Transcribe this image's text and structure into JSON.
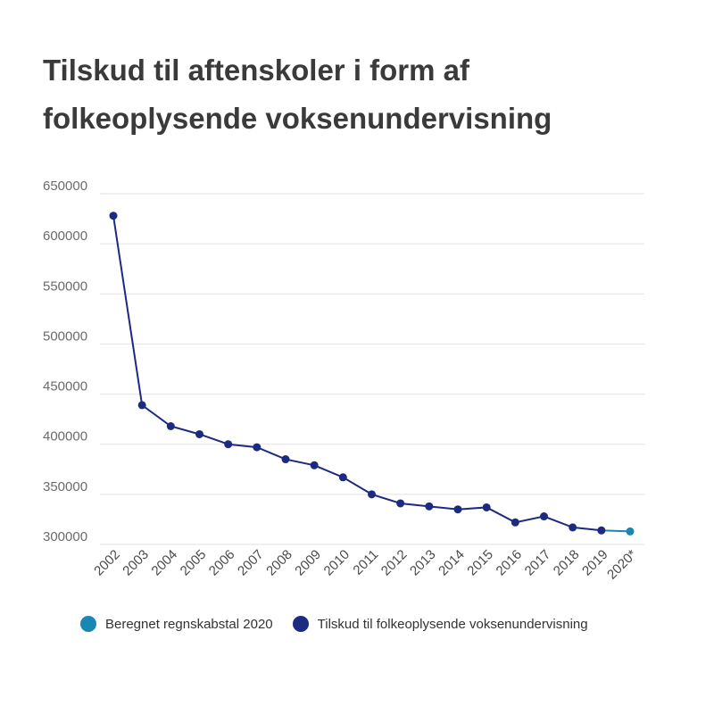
{
  "colors": {
    "main": "#1c2a80",
    "estimate": "#1a86b4",
    "grid": "#e2e2e2"
  },
  "chart_data": {
    "type": "line",
    "title": "Tilskud til aftenskoler i form af folkeoplysende voksenundervisning",
    "title_lines": [
      "Tilskud til aftenskoler i form af",
      "folkeoplysende voksenundervisning"
    ],
    "categories": [
      "2002",
      "2003",
      "2004",
      "2005",
      "2006",
      "2007",
      "2008",
      "2009",
      "2010",
      "2011",
      "2012",
      "2013",
      "2014",
      "2015",
      "2016",
      "2017",
      "2018",
      "2019",
      "2020*"
    ],
    "y_ticks": [
      "300000",
      "350000",
      "400000",
      "450000",
      "500000",
      "550000",
      "600000",
      "650000"
    ],
    "ylim": [
      300000,
      650000
    ],
    "grid": true,
    "legend_position": "bottom",
    "series": [
      {
        "name": "Tilskud til folkeoplysende voksenundervisning",
        "color": "#1c2a80",
        "values": [
          628000,
          439000,
          418000,
          410000,
          400000,
          397000,
          385000,
          379000,
          367000,
          350000,
          341000,
          338000,
          335000,
          337000,
          322000,
          328000,
          317000,
          314000,
          null
        ]
      },
      {
        "name": "Beregnet regnskabstal 2020",
        "color": "#1a86b4",
        "values": [
          null,
          null,
          null,
          null,
          null,
          null,
          null,
          null,
          null,
          null,
          null,
          null,
          null,
          null,
          null,
          null,
          null,
          314000,
          313000
        ]
      }
    ],
    "legend": [
      "Beregnet regnskabstal 2020",
      "Tilskud til folkeoplysende voksenundervisning"
    ]
  }
}
